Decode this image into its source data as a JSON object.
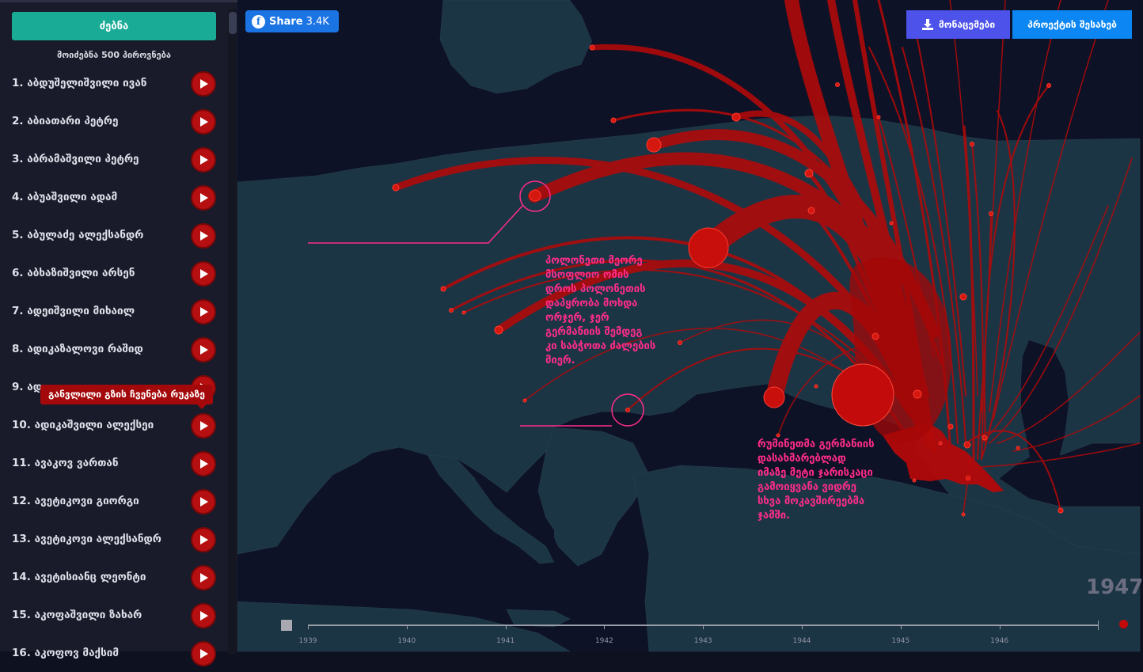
{
  "sidebar": {
    "search_label": "ძებნა",
    "found_count": "მოიძებნა 500 პიროვნება",
    "people": [
      {
        "name": "1. აბდუშელიშვილი ივან"
      },
      {
        "name": "2. აბიათარი პეტრე"
      },
      {
        "name": "3. აბრამაშვილი პეტრე"
      },
      {
        "name": "4. აბუაშვილი ადამ"
      },
      {
        "name": "5. აბულაძე ალექსანდრ"
      },
      {
        "name": "6. აბხაზიშვილი არსენ"
      },
      {
        "name": "7. ადეიშვილი მიხაილ"
      },
      {
        "name": "8. ადიკაზალოვი რაშიდ"
      },
      {
        "name": "9. ად"
      },
      {
        "name": "10. ადიკაშვილი ალექსეი"
      },
      {
        "name": "11. ავაკოვ ვართან"
      },
      {
        "name": "12. ავეტიკოვი გიორგი"
      },
      {
        "name": "13. ავეტიკოვი ალექსანდრ"
      },
      {
        "name": "14. ავეტისიანც ლეონტი"
      },
      {
        "name": "15. აკოფაშვილი ზახარ"
      },
      {
        "name": "16. აკოფოვ მაქსიმ"
      }
    ],
    "tooltip": "განვლილი გზის ჩვენება რუკაზე"
  },
  "header": {
    "share_label": "Share",
    "share_count": "3.4K",
    "download_label": "მონაცემები",
    "about_label": "პროექტის შესახებ"
  },
  "annotations": {
    "poland": "პოლონეთი მეორე მსოფლიო ომის დროს პოლონეთის დაპყრობა მოხდა ორჯერ, ჯერ გერმანიის შემდეგ კი საბჭოთა ძალების მიერ.",
    "romania": "რუმინეთმა გერმანიის დასახმარებლად იმაზე მეტი ჯარისკაცი გამოიყვანა ვიდრე სხვა მოკავშირეებმა ჯამში."
  },
  "timeline": {
    "current_year": "1947",
    "ticks": [
      "1939",
      "1940",
      "1941",
      "1942",
      "1943",
      "1944",
      "1945",
      "1946"
    ]
  },
  "icons": {
    "play": "play-icon",
    "download": "download-icon",
    "facebook": "facebook-icon"
  },
  "colors": {
    "search": "#1aab97",
    "route": "#c30c0c",
    "annotation": "#ff2c8c",
    "download": "#4d52ea",
    "about": "#0b86f2"
  }
}
